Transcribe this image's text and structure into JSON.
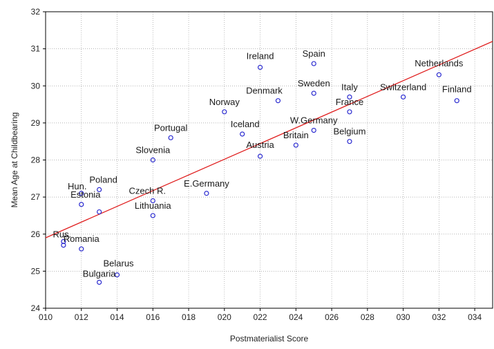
{
  "chart_data": {
    "type": "scatter",
    "xlabel": "Postmaterialist Score",
    "ylabel": "Mean Age at Childbearing",
    "xlim": [
      10,
      35
    ],
    "ylim": [
      24,
      32
    ],
    "x_ticks": [
      "010",
      "012",
      "014",
      "016",
      "018",
      "020",
      "022",
      "024",
      "026",
      "028",
      "030",
      "032",
      "034"
    ],
    "y_ticks": [
      "24",
      "25",
      "26",
      "27",
      "28",
      "29",
      "30",
      "31",
      "32"
    ],
    "grid": true,
    "legend": "none",
    "marker_color": "#2b2bd0",
    "fit_line_color": "#e02020",
    "fit_line": {
      "x": [
        10,
        35
      ],
      "y": [
        25.9,
        31.2
      ]
    },
    "points": [
      {
        "label": "Ireland",
        "x": 22,
        "y": 30.5
      },
      {
        "label": "Spain",
        "x": 25,
        "y": 30.6
      },
      {
        "label": "Netherlands",
        "x": 32,
        "y": 30.3
      },
      {
        "label": "Sweden",
        "x": 25,
        "y": 29.8
      },
      {
        "label": "Denmark",
        "x": 23,
        "y": 29.6
      },
      {
        "label": "Italy",
        "x": 27,
        "y": 29.7
      },
      {
        "label": "Switzerland",
        "x": 30,
        "y": 29.7
      },
      {
        "label": "Finland",
        "x": 33,
        "y": 29.6
      },
      {
        "label": "Norway",
        "x": 20,
        "y": 29.3
      },
      {
        "label": "France",
        "x": 27,
        "y": 29.3
      },
      {
        "label": "W.Germany",
        "x": 25,
        "y": 28.8
      },
      {
        "label": "Iceland",
        "x": 21,
        "y": 28.7
      },
      {
        "label": "Portugal",
        "x": 17,
        "y": 28.6
      },
      {
        "label": "Belgium",
        "x": 27,
        "y": 28.5
      },
      {
        "label": "Britain",
        "x": 24,
        "y": 28.4
      },
      {
        "label": "Austria",
        "x": 22,
        "y": 28.1
      },
      {
        "label": "Slovenia",
        "x": 16,
        "y": 28.0
      },
      {
        "label": "Poland",
        "x": 13,
        "y": 27.2
      },
      {
        "label": "Hun.",
        "x": 12,
        "y": 27.1
      },
      {
        "label": "E.Germany",
        "x": 19,
        "y": 27.1
      },
      {
        "label": "Czech R.",
        "x": 16,
        "y": 26.9
      },
      {
        "label": "Estonia",
        "x": 12,
        "y": 26.8
      },
      {
        "label": "Lithuania",
        "x": 13,
        "y": 26.6
      },
      {
        "label": "Lithuania",
        "x": 16,
        "y": 26.5
      },
      {
        "label": "Rus.",
        "x": 11,
        "y": 25.8
      },
      {
        "label": "Rus.",
        "x": 11,
        "y": 25.7
      },
      {
        "label": "Romania",
        "x": 12,
        "y": 25.6
      },
      {
        "label": "Belarus",
        "x": 14,
        "y": 24.9
      },
      {
        "label": "Bulgaria",
        "x": 13,
        "y": 24.7
      }
    ],
    "labels": [
      {
        "text": "Ireland",
        "x": 22,
        "y": 30.5
      },
      {
        "text": "Spain",
        "x": 25,
        "y": 30.6
      },
      {
        "text": "Netherlands",
        "x": 32,
        "y": 30.3
      },
      {
        "text": "Sweden",
        "x": 25,
        "y": 29.8
      },
      {
        "text": "Denmark",
        "x": 23,
        "y": 29.6
      },
      {
        "text": "Italy",
        "x": 27,
        "y": 29.7
      },
      {
        "text": "Switzerland",
        "x": 30,
        "y": 29.7
      },
      {
        "text": "Finland",
        "x": 33,
        "y": 29.6
      },
      {
        "text": "Norway",
        "x": 20,
        "y": 29.3
      },
      {
        "text": "France",
        "x": 27,
        "y": 29.3
      },
      {
        "text": "W.Germany",
        "x": 25,
        "y": 28.8
      },
      {
        "text": "Iceland",
        "x": 21,
        "y": 28.7
      },
      {
        "text": "Portugal",
        "x": 17,
        "y": 28.6
      },
      {
        "text": "Belgium",
        "x": 27,
        "y": 28.5
      },
      {
        "text": "Britain",
        "x": 24,
        "y": 28.4
      },
      {
        "text": "Austria",
        "x": 22,
        "y": 28.1
      },
      {
        "text": "Slovenia",
        "x": 16,
        "y": 28.0
      },
      {
        "text": "Poland",
        "x": 13,
        "y": 27.2
      },
      {
        "text": "Hun.",
        "x": 12,
        "y": 27.1
      },
      {
        "text": "E.Germany",
        "x": 19,
        "y": 27.1
      },
      {
        "text": "Czech R.",
        "x": 16,
        "y": 26.9
      },
      {
        "text": "Estonia",
        "x": 12,
        "y": 26.8
      },
      {
        "text": "Lithuania",
        "x": 16,
        "y": 26.5
      },
      {
        "text": "Rus.",
        "x": 11,
        "y": 25.8
      },
      {
        "text": "Romania",
        "x": 12,
        "y": 25.6
      },
      {
        "text": "Belarus",
        "x": 14,
        "y": 24.9
      },
      {
        "text": "Bulgaria",
        "x": 13,
        "y": 24.7
      }
    ]
  }
}
